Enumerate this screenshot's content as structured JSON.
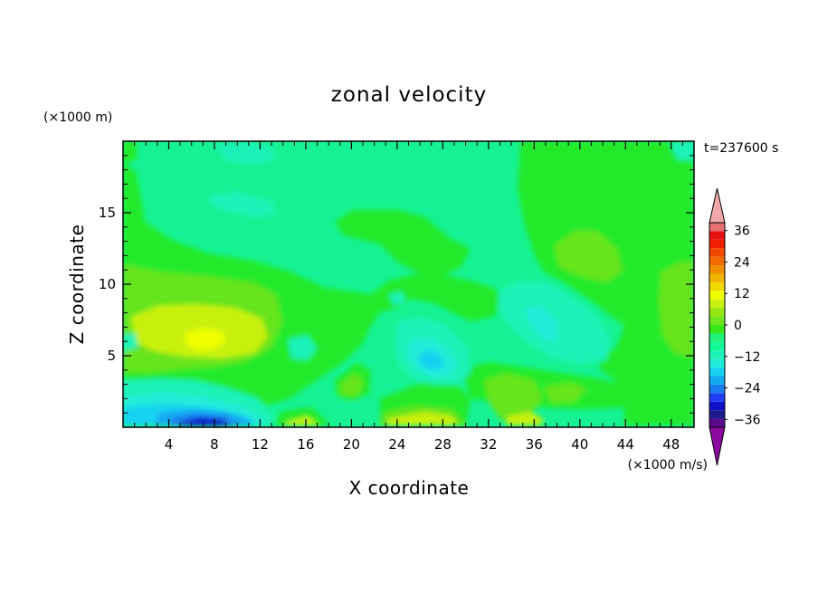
{
  "chart_data": {
    "type": "heatmap",
    "title": "zonal velocity",
    "xlabel": "X coordinate",
    "ylabel": "Z coordinate",
    "x_unit": "(×1000 m/s)",
    "y_unit": "(×1000 m)",
    "time_label": "t=237600 s",
    "xlim": [
      0,
      50
    ],
    "ylim": [
      0,
      20
    ],
    "x_ticks": [
      4,
      8,
      12,
      16,
      20,
      24,
      28,
      32,
      36,
      40,
      44,
      48
    ],
    "y_ticks": [
      5,
      10,
      15
    ],
    "colorbar": {
      "levels": [
        -42,
        -39,
        -36,
        -33,
        -30,
        -27,
        -24,
        -21,
        -18,
        -15,
        -12,
        -9,
        -6,
        -3,
        0,
        3,
        6,
        9,
        12,
        15,
        18,
        21,
        24,
        27,
        30,
        33,
        36,
        39,
        42
      ],
      "labels": [
        36,
        24,
        12,
        0,
        -12,
        -24,
        -36
      ],
      "colors": [
        "#5a0a8a",
        "#1a1a8c",
        "#1010c8",
        "#1e3cf0",
        "#1a7cf0",
        "#13aaf0",
        "#16d2f0",
        "#22ecd8",
        "#1ef2b8",
        "#13f896",
        "#1ef27a",
        "#34e61a",
        "#6ee61e",
        "#96e610",
        "#c8f010",
        "#eeff00",
        "#f0d800",
        "#f0b400",
        "#f09000",
        "#f06c00",
        "#f04800",
        "#f02000",
        "#e61010",
        "#e67070",
        "#f0a8a8"
      ],
      "extend_low_color": "#8c0aa0",
      "extend_high_color": "#f0a8a8"
    },
    "features": [
      {
        "x": 6.5,
        "z": 0.3,
        "value": -27
      },
      {
        "x": 6.5,
        "z": 6.8,
        "value": 13
      },
      {
        "x": 26.5,
        "z": 4.5,
        "value": -10
      },
      {
        "x": 36.5,
        "z": 8,
        "value": -7
      },
      {
        "x": 41,
        "z": 11.5,
        "value": 4
      },
      {
        "x": 48.5,
        "z": 9,
        "value": 4
      },
      {
        "x": 12.5,
        "z": 18.8,
        "value": -4
      },
      {
        "x": 46.5,
        "z": 19,
        "value": -4
      }
    ]
  }
}
